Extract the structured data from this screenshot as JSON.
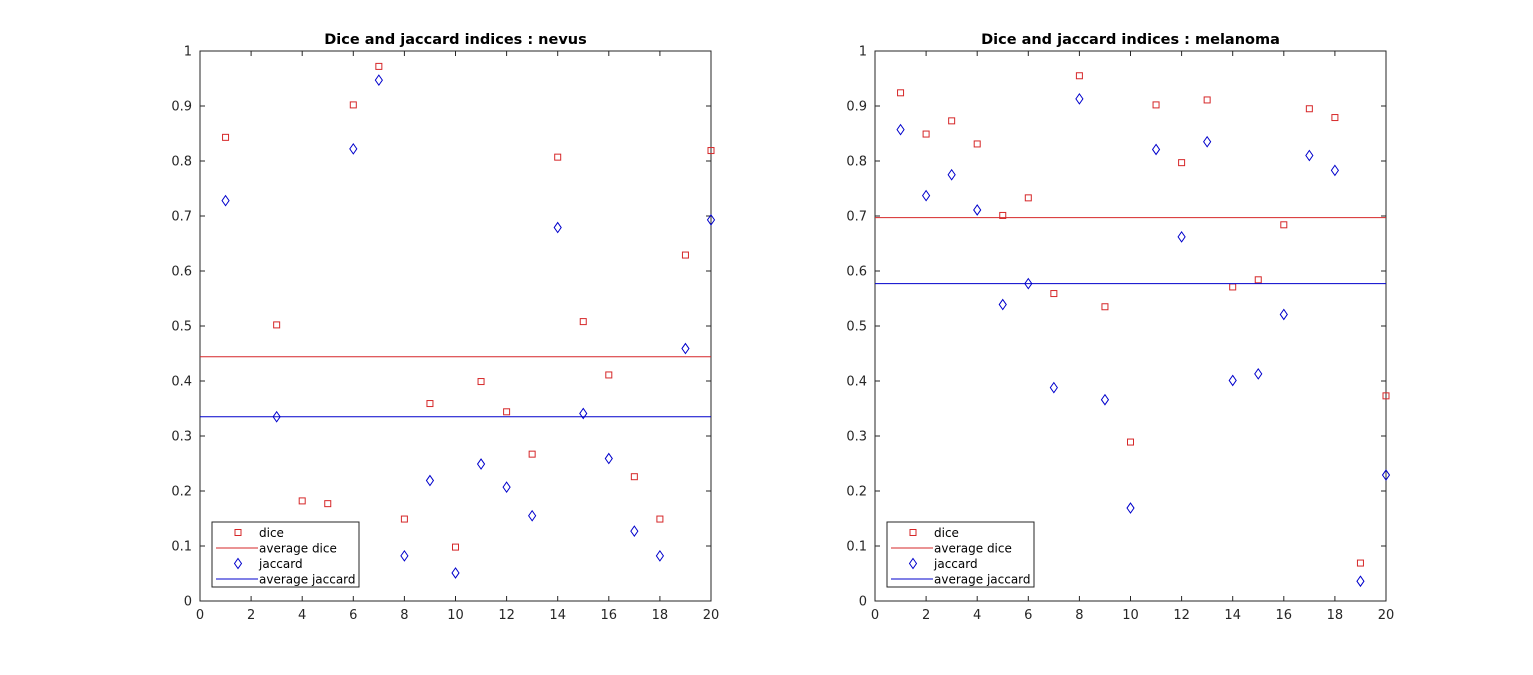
{
  "chart_data": [
    {
      "type": "scatter",
      "title": "Dice and jaccard indices : nevus",
      "xlim": [
        0,
        20
      ],
      "ylim": [
        0,
        1
      ],
      "xticks": [
        "0",
        "2",
        "4",
        "6",
        "8",
        "10",
        "12",
        "14",
        "16",
        "18",
        "20"
      ],
      "yticks": [
        "0",
        "0.1",
        "0.2",
        "0.3",
        "0.4",
        "0.5",
        "0.6",
        "0.7",
        "0.8",
        "0.9",
        "1"
      ],
      "legend_position": "bottom-left",
      "series": [
        {
          "name": "dice",
          "marker": "square",
          "color": "#d62728",
          "x": [
            1,
            3,
            4,
            5,
            6,
            7,
            8,
            9,
            10,
            11,
            12,
            13,
            14,
            15,
            16,
            17,
            18,
            19,
            20
          ],
          "y": [
            0.843,
            0.502,
            0.182,
            0.177,
            0.902,
            0.972,
            0.149,
            0.359,
            0.098,
            0.399,
            0.344,
            0.267,
            0.807,
            0.508,
            0.411,
            0.226,
            0.149,
            0.629,
            0.819
          ]
        },
        {
          "name": "average dice",
          "type": "hline",
          "color": "#d62728",
          "value": 0.444
        },
        {
          "name": "jaccard",
          "marker": "diamond",
          "color": "#0000cc",
          "x": [
            1,
            3,
            6,
            7,
            8,
            9,
            10,
            11,
            12,
            13,
            14,
            15,
            16,
            17,
            18,
            19,
            20
          ],
          "y": [
            0.728,
            0.335,
            0.822,
            0.947,
            0.082,
            0.219,
            0.051,
            0.249,
            0.207,
            0.155,
            0.679,
            0.341,
            0.259,
            0.127,
            0.082,
            0.459,
            0.693
          ]
        },
        {
          "name": "average jaccard",
          "type": "hline",
          "color": "#0000cc",
          "value": 0.335
        }
      ]
    },
    {
      "type": "scatter",
      "title": "Dice and jaccard indices : melanoma",
      "xlim": [
        0,
        20
      ],
      "ylim": [
        0,
        1
      ],
      "xticks": [
        "0",
        "2",
        "4",
        "6",
        "8",
        "10",
        "12",
        "14",
        "16",
        "18",
        "20"
      ],
      "yticks": [
        "0",
        "0.1",
        "0.2",
        "0.3",
        "0.4",
        "0.5",
        "0.6",
        "0.7",
        "0.8",
        "0.9",
        "1"
      ],
      "legend_position": "bottom-left",
      "series": [
        {
          "name": "dice",
          "marker": "square",
          "color": "#d62728",
          "x": [
            1,
            2,
            3,
            4,
            5,
            6,
            7,
            8,
            9,
            10,
            11,
            12,
            13,
            14,
            15,
            16,
            17,
            18,
            19,
            20
          ],
          "y": [
            0.924,
            0.849,
            0.873,
            0.831,
            0.701,
            0.733,
            0.559,
            0.955,
            0.535,
            0.289,
            0.902,
            0.797,
            0.911,
            0.571,
            0.584,
            0.684,
            0.895,
            0.879,
            0.069,
            0.373
          ]
        },
        {
          "name": "average dice",
          "type": "hline",
          "color": "#d62728",
          "value": 0.697
        },
        {
          "name": "jaccard",
          "marker": "diamond",
          "color": "#0000cc",
          "x": [
            1,
            2,
            3,
            4,
            5,
            6,
            7,
            8,
            9,
            10,
            11,
            12,
            13,
            14,
            15,
            16,
            17,
            18,
            19,
            20
          ],
          "y": [
            0.857,
            0.737,
            0.775,
            0.711,
            0.539,
            0.577,
            0.388,
            0.913,
            0.366,
            0.169,
            0.821,
            0.662,
            0.835,
            0.401,
            0.413,
            0.521,
            0.81,
            0.783,
            0.036,
            0.229
          ]
        },
        {
          "name": "average jaccard",
          "type": "hline",
          "color": "#0000cc",
          "value": 0.577
        }
      ]
    }
  ]
}
